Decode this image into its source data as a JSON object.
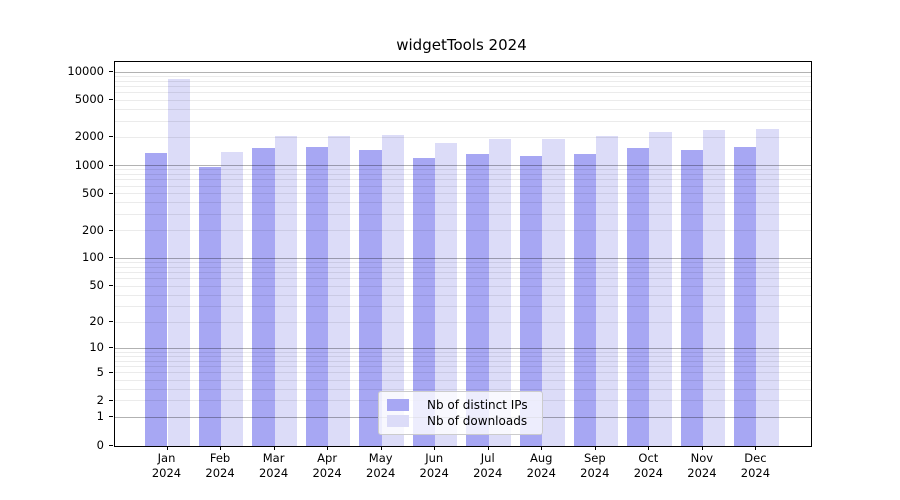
{
  "chart_data": {
    "type": "bar",
    "title": "widgetTools 2024",
    "months": [
      "Jan",
      "Feb",
      "Mar",
      "Apr",
      "May",
      "Jun",
      "Jul",
      "Aug",
      "Sep",
      "Oct",
      "Nov",
      "Dec"
    ],
    "year_label": "2024",
    "series": [
      {
        "name": "Nb of distinct IPs",
        "color": "#a7a7f3",
        "values": [
          1360,
          960,
          1550,
          1580,
          1480,
          1200,
          1320,
          1270,
          1320,
          1540,
          1480,
          1590
        ]
      },
      {
        "name": "Nb of downloads",
        "color": "#dcdcf8",
        "values": [
          8450,
          1390,
          2090,
          2060,
          2130,
          1760,
          1920,
          1910,
          2090,
          2300,
          2400,
          2480
        ]
      }
    ],
    "y_ticks": [
      0,
      1,
      2,
      5,
      10,
      20,
      50,
      100,
      200,
      500,
      1000,
      2000,
      5000,
      10000
    ],
    "y_scale": "log10(1+v)",
    "ylim": [
      0,
      13000
    ],
    "grid": true,
    "legend_position": "inside-bottom-center",
    "axis_color": "#000000",
    "grid_major_color": "rgba(0,0,0,0.30)",
    "grid_minor_color": "rgba(0,0,0,0.08)"
  }
}
